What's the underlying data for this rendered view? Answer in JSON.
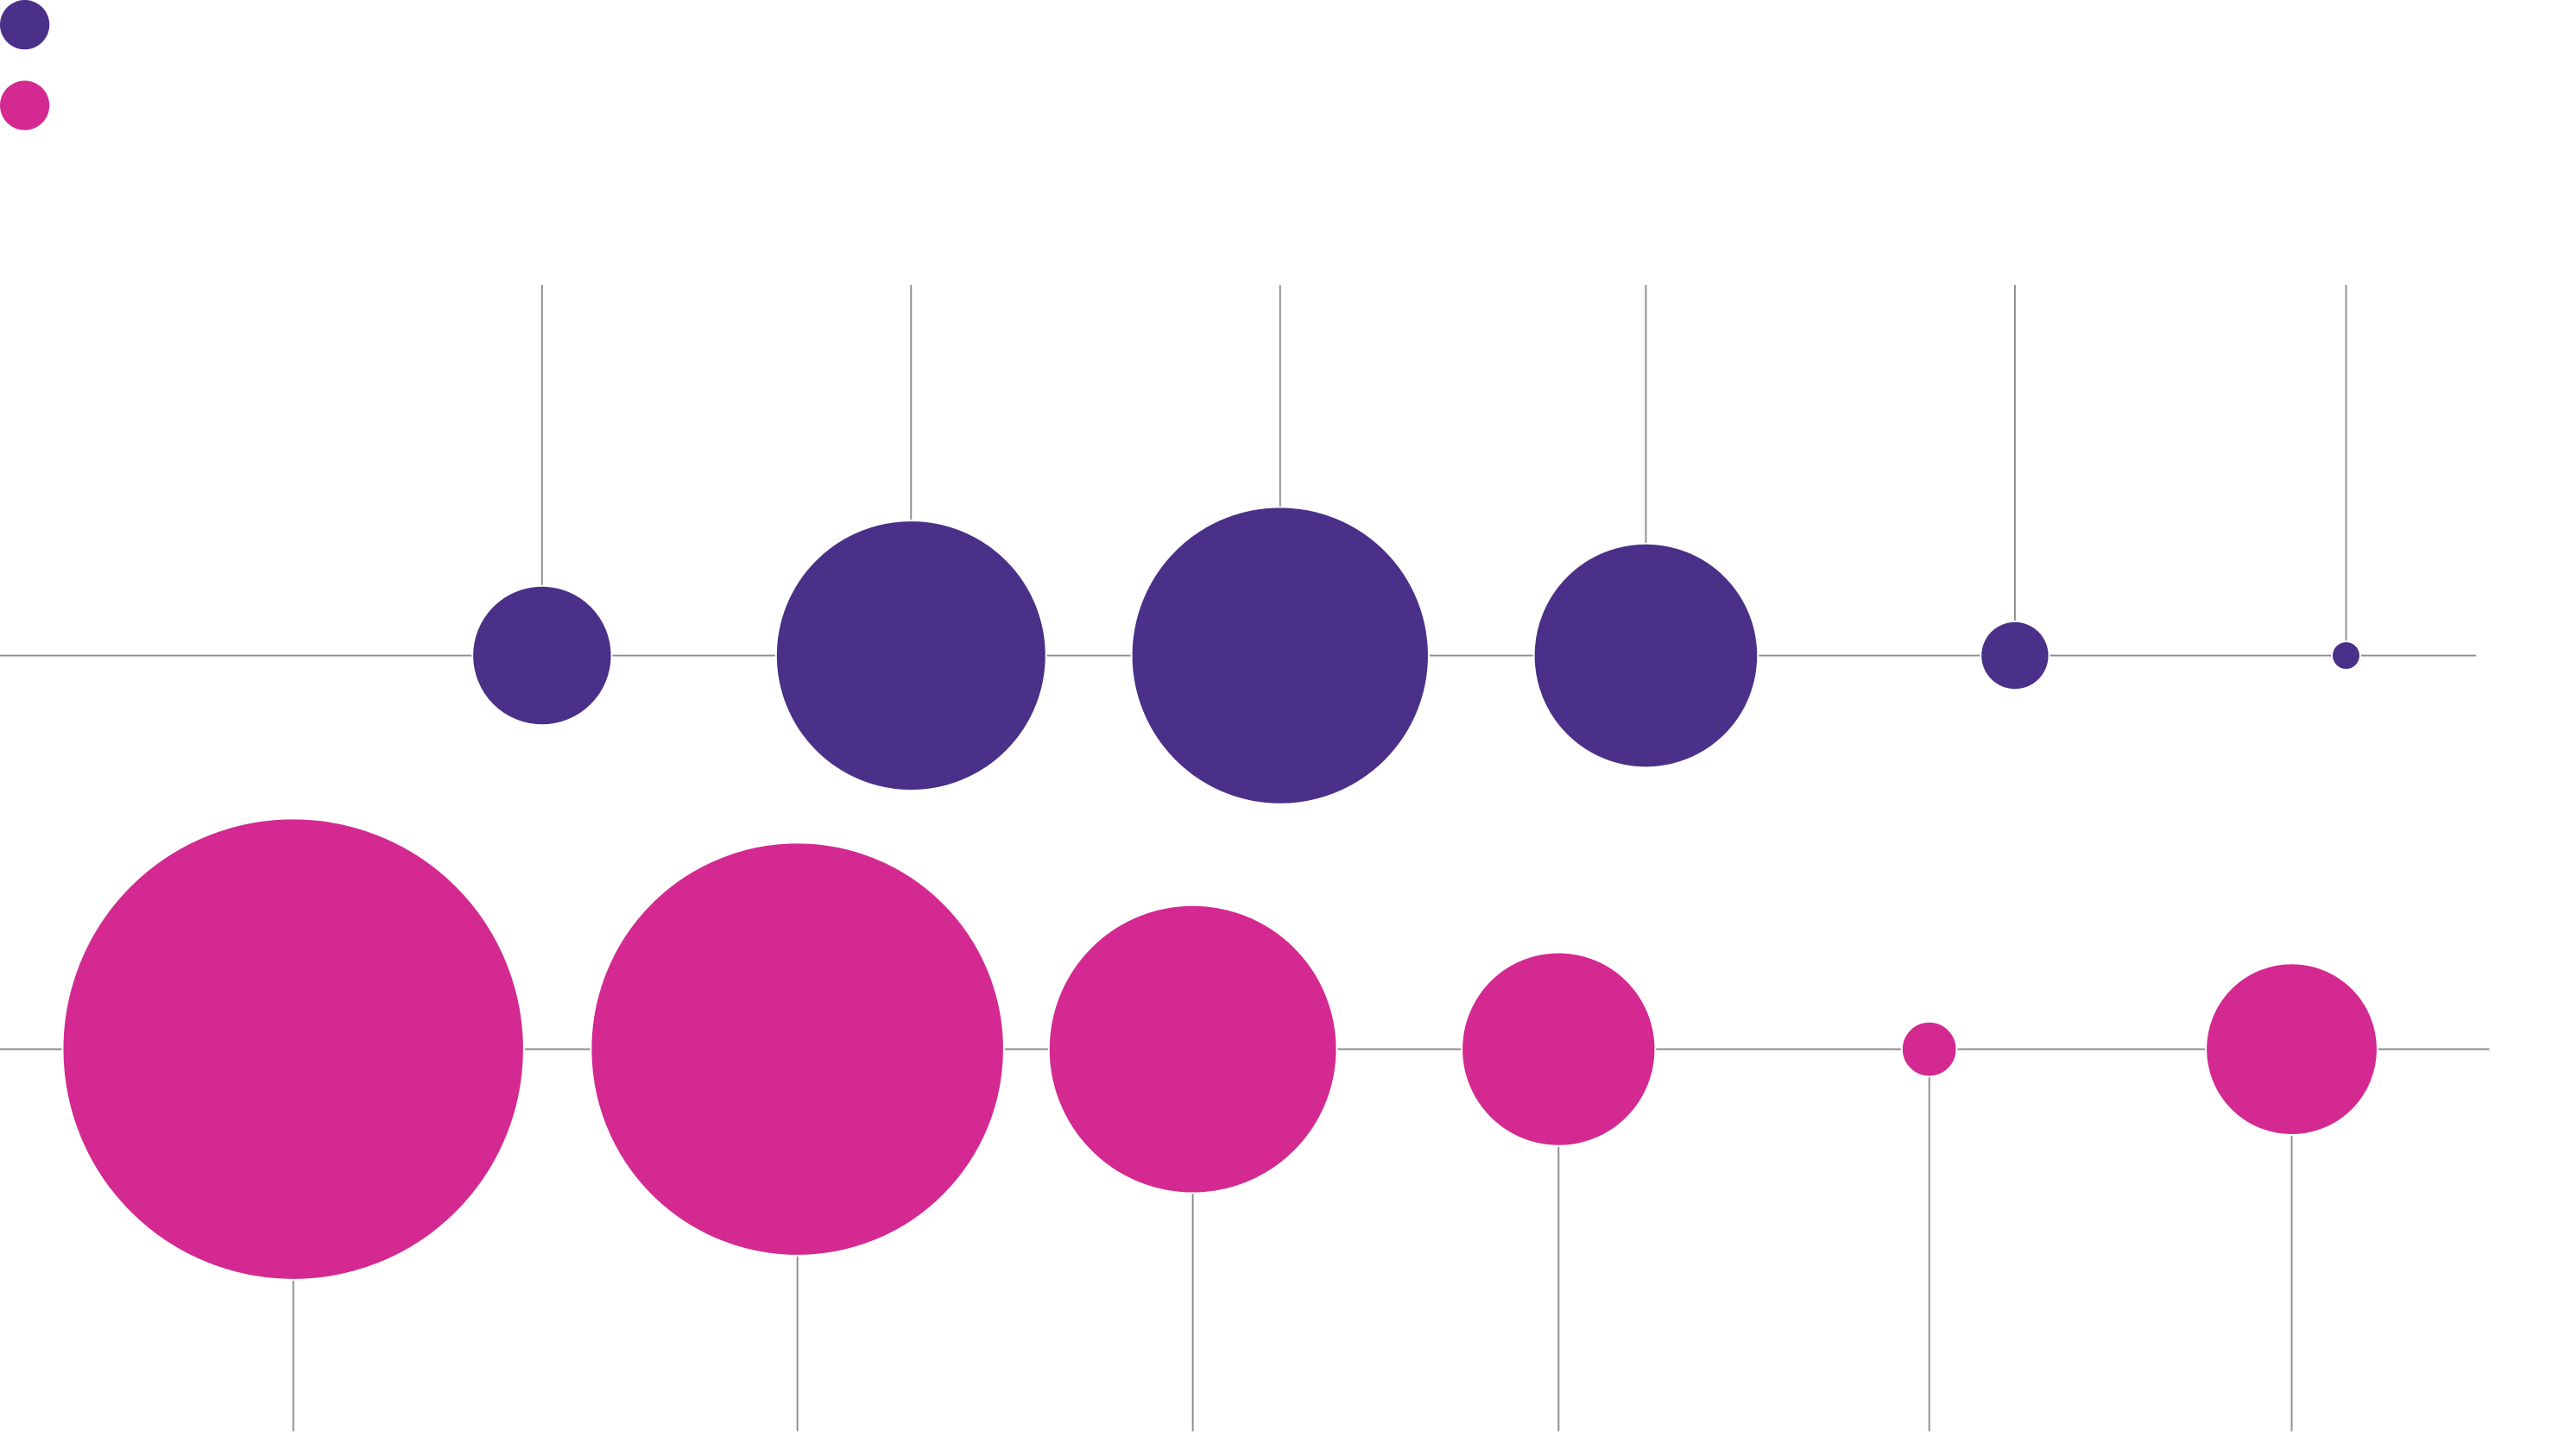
{
  "colors": {
    "series_1": "#4a3088",
    "series_2": "#d32991",
    "axis_line": "#8c8c8c"
  },
  "chart_data": {
    "type": "bubble",
    "title": "",
    "xlabel": "",
    "ylabel": "",
    "legend": {
      "placement": "top-left",
      "entries_have_text": false
    },
    "grid": false,
    "series": [
      {
        "color_key": "series_1",
        "stem_direction": "up",
        "points": [
          {
            "position": 1,
            "size": 29
          },
          {
            "position": 2,
            "size": 109
          },
          {
            "position": 3,
            "size": 132
          },
          {
            "position": 4,
            "size": 75
          },
          {
            "position": 5,
            "size": 7
          },
          {
            "position": 6,
            "size": 1.2
          }
        ]
      },
      {
        "color_key": "series_2",
        "stem_direction": "down",
        "points": [
          {
            "position": 1,
            "size": 318
          },
          {
            "position": 2,
            "size": 255
          },
          {
            "position": 3,
            "size": 124
          },
          {
            "position": 4,
            "size": 56
          },
          {
            "position": 5,
            "size": 4.5
          },
          {
            "position": 6,
            "size": 44
          }
        ]
      }
    ]
  }
}
